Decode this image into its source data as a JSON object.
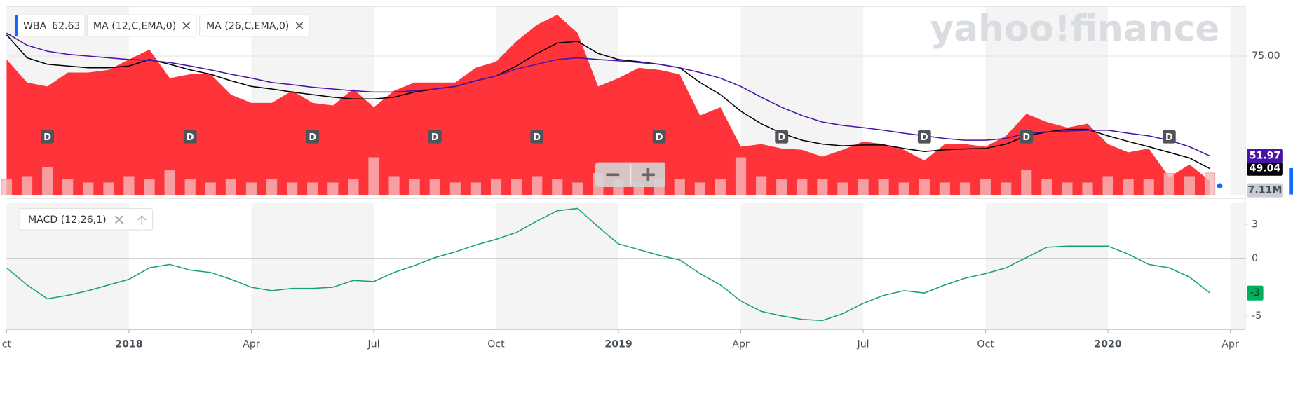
{
  "chart_data": [
    {
      "type": "area",
      "watermark": "yahoo!finance",
      "categories": [
        "ct",
        null,
        null,
        null,
        null,
        null,
        "2018",
        null,
        null,
        null,
        null,
        null,
        "Apr",
        null,
        null,
        null,
        null,
        null,
        "Jul",
        null,
        null,
        null,
        null,
        null,
        "Oct",
        null,
        null,
        null,
        null,
        null,
        "2019",
        null,
        null,
        null,
        null,
        null,
        "Apr",
        null,
        null,
        null,
        null,
        null,
        "Jul",
        null,
        null,
        null,
        null,
        null,
        "Oct",
        null,
        null,
        null,
        null,
        null,
        "2020",
        null,
        null,
        null,
        null,
        null,
        "Apr"
      ],
      "series": [
        {
          "name": "WBA",
          "quote": 62.63,
          "type": "area",
          "color": "#ff333a",
          "values": [
            74.2,
            68.9,
            68,
            71.2,
            71.2,
            71.8,
            74.2,
            76.5,
            69.9,
            70.8,
            70.8,
            66.1,
            64.2,
            64.2,
            67,
            64.2,
            63.6,
            67.4,
            63.2,
            67,
            68.9,
            68.9,
            68.9,
            72.3,
            73.7,
            78.4,
            82.2,
            84.5,
            80.3,
            68,
            69.9,
            72.3,
            71.8,
            70.8,
            61.3,
            63.2,
            54.1,
            54.7,
            53.7,
            53.4,
            51.8,
            53.4,
            55.3,
            54.7,
            53.4,
            50.9,
            54.7,
            54.7,
            54.1,
            56.6,
            61.7,
            59.8,
            58.5,
            59.4,
            54.7,
            52.8,
            53.7,
            47.1,
            50,
            46.2,
            null
          ]
        },
        {
          "name": "MA (12,C,EMA,0)",
          "type": "line",
          "color": "#000000",
          "values": [
            79.9,
            74.6,
            73.1,
            72.7,
            72.3,
            72.3,
            72.7,
            74.2,
            73.1,
            71.8,
            70.8,
            69.3,
            68,
            67.4,
            66.7,
            66.1,
            65.5,
            65.1,
            65.1,
            65.5,
            66.7,
            67.4,
            68,
            69.3,
            70.4,
            72.7,
            75.6,
            78,
            78.4,
            75.6,
            74.2,
            73.7,
            73.1,
            72.3,
            68.9,
            66.1,
            62.3,
            59.4,
            57.2,
            55.6,
            54.7,
            54.3,
            54.5,
            54.5,
            53.7,
            53,
            53.4,
            53.6,
            53.7,
            54.7,
            56.6,
            57.5,
            58.1,
            58.1,
            56.6,
            55.3,
            54.1,
            52.8,
            51.5,
            49.04,
            null
          ]
        },
        {
          "name": "MA (26,C,EMA,0)",
          "type": "line",
          "color": "#4a12a8",
          "values": [
            80.3,
            77.5,
            76.1,
            75.4,
            75,
            74.6,
            74.2,
            74,
            73.5,
            72.7,
            71.8,
            70.8,
            69.9,
            68.9,
            68.4,
            67.8,
            67.4,
            67,
            66.7,
            66.7,
            67,
            67.4,
            68,
            69.3,
            70.4,
            72,
            73.1,
            74.2,
            74.6,
            74.2,
            73.9,
            73.5,
            73.1,
            72.3,
            71.2,
            69.9,
            68,
            65.5,
            63.2,
            61.3,
            59.8,
            59,
            58.5,
            57.9,
            57.2,
            56.6,
            56,
            55.6,
            55.6,
            56,
            57.2,
            57.5,
            57.7,
            57.9,
            57.9,
            57.2,
            56.6,
            55.6,
            54.1,
            51.97,
            null
          ]
        }
      ],
      "volume": {
        "color": "#f6b9bc",
        "values": [
          5,
          6,
          9,
          5,
          4,
          4,
          6,
          5,
          8,
          5,
          4,
          5,
          4,
          5,
          4,
          4,
          4,
          5,
          12,
          6,
          5,
          5,
          4,
          4,
          5,
          5,
          6,
          5,
          4,
          7,
          5,
          4,
          5,
          5,
          4,
          5,
          12,
          6,
          5,
          5,
          5,
          4,
          5,
          5,
          4,
          5,
          4,
          4,
          5,
          4,
          8,
          5,
          4,
          4,
          6,
          5,
          5,
          7,
          6,
          7.11,
          null
        ],
        "value_labels": [
          null,
          null,
          null,
          null,
          null,
          null,
          null,
          null,
          null,
          null,
          null,
          null,
          null,
          null,
          null,
          null,
          null,
          null,
          null,
          null,
          null,
          null,
          null,
          null,
          null,
          null,
          null,
          null,
          null,
          null,
          null,
          null,
          null,
          null,
          null,
          null,
          null,
          null,
          null,
          null,
          null,
          null,
          null,
          null,
          null,
          null,
          null,
          null,
          null,
          null,
          null,
          null,
          null,
          null,
          null,
          null,
          null,
          null,
          null,
          "7.11M",
          null
        ]
      },
      "annotations": [
        {
          "label": "D",
          "at": 2
        },
        {
          "label": "D",
          "at": 9
        },
        {
          "label": "D",
          "at": 15
        },
        {
          "label": "D",
          "at": 21
        },
        {
          "label": "D",
          "at": 26
        },
        {
          "label": "D",
          "at": 32
        },
        {
          "label": "D",
          "at": 38
        },
        {
          "label": "D",
          "at": 45
        },
        {
          "label": "D",
          "at": 50
        },
        {
          "label": "D",
          "at": 57
        }
      ],
      "ylim": [
        42.9,
        86.4
      ],
      "yticks": [
        {
          "value": 75,
          "label": "75.00"
        }
      ],
      "y2lim": [
        0,
        60
      ],
      "grid": true
    },
    {
      "type": "line",
      "series": [
        {
          "name": "MACD (12,26,1)",
          "color": "#16a07a",
          "values": [
            -0.8,
            -2.3,
            -3.5,
            -3.2,
            -2.8,
            -2.3,
            -1.8,
            -0.8,
            -0.5,
            -1,
            -1.2,
            -1.8,
            -2.5,
            -2.8,
            -2.6,
            -2.6,
            -2.5,
            -1.9,
            -2,
            -1.2,
            -0.6,
            0.1,
            0.6,
            1.2,
            1.7,
            2.3,
            3.3,
            4.2,
            4.4,
            2.8,
            1.3,
            0.8,
            0.3,
            -0.1,
            -1.3,
            -2.3,
            -3.7,
            -4.6,
            -5,
            -5.3,
            -5.4,
            -4.8,
            -3.9,
            -3.2,
            -2.8,
            -3,
            -2.3,
            -1.7,
            -1.3,
            -0.8,
            0.1,
            1,
            1.1,
            1.1,
            1.1,
            0.4,
            -0.5,
            -0.8,
            -1.6,
            -3,
            null
          ]
        }
      ],
      "ylim": [
        -6.2,
        4.9
      ],
      "yticks": [
        -5,
        0,
        3
      ],
      "grid": false
    }
  ]
}
